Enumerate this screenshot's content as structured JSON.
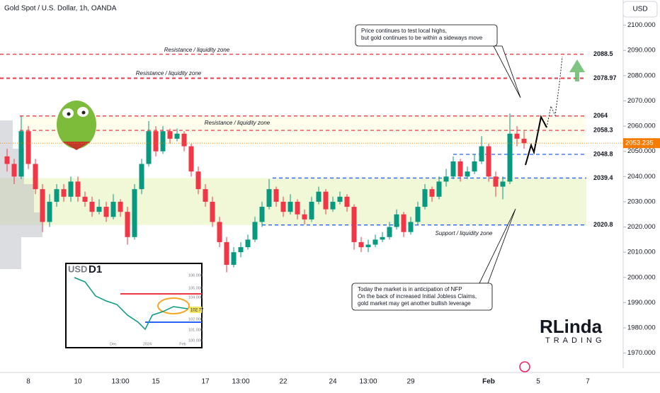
{
  "chart_data": {
    "type": "candlestick",
    "title": "Gold Spot / U.S. Dollar, 1h, OANDA",
    "currency": "USD",
    "up_color": "#089981",
    "down_color": "#f23645",
    "categories": [
      null,
      null,
      null,
      "8",
      null,
      null,
      null,
      null,
      null,
      null,
      "10",
      null,
      null,
      null,
      null,
      null,
      "13:00",
      null,
      null,
      null,
      null,
      "15",
      null,
      null,
      null,
      null,
      null,
      null,
      "17",
      null,
      null,
      null,
      null,
      "13:00",
      null,
      null,
      null,
      null,
      null,
      "22",
      null,
      null,
      null,
      null,
      null,
      null,
      "24",
      null,
      null,
      null,
      null,
      "13:00",
      null,
      null,
      null,
      null,
      null,
      "29",
      null,
      null,
      null,
      null,
      null,
      null,
      null,
      null,
      null,
      null,
      "Feb",
      null,
      null,
      null,
      null,
      null,
      null,
      "5",
      null,
      null,
      null,
      null,
      null,
      null,
      "7"
    ],
    "open": [
      2048,
      2045,
      2040,
      2058,
      2045,
      2035,
      2022,
      2030,
      2035,
      2032,
      2038,
      2032,
      2030,
      2026,
      2028,
      2024,
      2030,
      2026,
      2016,
      2035,
      2045,
      2058,
      2050,
      2058,
      2055,
      2057,
      2052,
      2042,
      2035,
      2030,
      2022,
      2014,
      2005,
      2010,
      2012,
      2015,
      2022,
      2028,
      2035,
      2030,
      2026,
      2030,
      2025,
      2023,
      2030,
      2034,
      2027,
      2030,
      2032,
      2028,
      2014,
      2012,
      2013,
      2015,
      2016,
      2020,
      2025,
      2018,
      2022,
      2028,
      2035,
      2032,
      2038,
      2040,
      2046,
      2040,
      2042,
      2046,
      2052,
      2040,
      2036,
      2038,
      2057,
      2055,
      null,
      null,
      null,
      null,
      null,
      null,
      null,
      null,
      null
    ],
    "high": [
      2051,
      2047,
      2064,
      2060,
      2047,
      2037,
      2033,
      2037,
      2037,
      2040,
      2040,
      2034,
      2032,
      2031,
      2030,
      2033,
      2031,
      2028,
      2037,
      2047,
      2062,
      2060,
      2060,
      2059,
      2059,
      2058,
      2053,
      2044,
      2037,
      2032,
      2024,
      2016,
      2012,
      2014,
      2017,
      2024,
      2030,
      2039,
      2036,
      2032,
      2033,
      2031,
      2027,
      2032,
      2036,
      2035,
      2032,
      2034,
      2033,
      2029,
      2016,
      2015,
      2017,
      2018,
      2022,
      2027,
      2026,
      2024,
      2030,
      2037,
      2036,
      2040,
      2043,
      2048,
      2047,
      2044,
      2049,
      2056,
      2053,
      2042,
      2040,
      2065,
      2060,
      2058,
      null,
      null,
      null,
      null,
      null,
      null,
      null,
      null,
      null
    ],
    "low": [
      2042,
      2037,
      2039,
      2043,
      2033,
      2018,
      2020,
      2028,
      2030,
      2030,
      2030,
      2028,
      2024,
      2025,
      2022,
      2023,
      2024,
      2013,
      2015,
      2033,
      2044,
      2048,
      2049,
      2053,
      2054,
      2050,
      2040,
      2033,
      2028,
      2020,
      2012,
      2002,
      2004,
      2008,
      2011,
      2014,
      2020,
      2027,
      2028,
      2024,
      2025,
      2023,
      2021,
      2022,
      2029,
      2025,
      2026,
      2029,
      2026,
      2011,
      2010,
      2010,
      2012,
      2014,
      2015,
      2019,
      2016,
      2017,
      2021,
      2027,
      2030,
      2031,
      2036,
      2039,
      2038,
      2039,
      2041,
      2045,
      2038,
      2032,
      2031,
      2037,
      2052,
      2051,
      null,
      null,
      null,
      null,
      null,
      null,
      null,
      null,
      null
    ],
    "close": [
      2045,
      2040,
      2058,
      2045,
      2035,
      2022,
      2030,
      2035,
      2032,
      2038,
      2032,
      2030,
      2026,
      2028,
      2024,
      2030,
      2026,
      2016,
      2035,
      2045,
      2058,
      2050,
      2058,
      2055,
      2057,
      2052,
      2042,
      2035,
      2030,
      2022,
      2014,
      2005,
      2010,
      2012,
      2015,
      2022,
      2028,
      2035,
      2030,
      2026,
      2030,
      2025,
      2023,
      2030,
      2034,
      2027,
      2030,
      2032,
      2028,
      2014,
      2012,
      2013,
      2015,
      2016,
      2020,
      2025,
      2018,
      2022,
      2028,
      2035,
      2032,
      2038,
      2040,
      2046,
      2040,
      2042,
      2046,
      2052,
      2040,
      2036,
      2038,
      2057,
      2055,
      2053.235,
      null,
      null,
      null,
      null,
      null,
      null,
      null,
      null,
      null
    ],
    "ylim": [
      1964,
      2110
    ],
    "yticks": [
      {
        "value": 2100,
        "label": "2100.000"
      },
      {
        "value": 2090,
        "label": "2090.000"
      },
      {
        "value": 2080,
        "label": "2080.000"
      },
      {
        "value": 2070,
        "label": "2070.000"
      },
      {
        "value": 2060,
        "label": "2060.000"
      },
      {
        "value": 2050,
        "label": "2050.000"
      },
      {
        "value": 2040,
        "label": "2040.000"
      },
      {
        "value": 2030,
        "label": "2030.000"
      },
      {
        "value": 2020,
        "label": "2020.000"
      },
      {
        "value": 2010,
        "label": "2010.000"
      },
      {
        "value": 2000,
        "label": "2000.000"
      },
      {
        "value": 1990,
        "label": "1990.000"
      },
      {
        "value": 1980,
        "label": "1980.000"
      },
      {
        "value": 1970,
        "label": "1970.000"
      }
    ],
    "levels": [
      {
        "value": 2088.5,
        "color": "#f23645"
      },
      {
        "value": 2078.97,
        "color": "#f23645"
      },
      {
        "value": 2064,
        "color": "#f23645"
      },
      {
        "value": 2058.3,
        "color": "#f23645"
      },
      {
        "value": 2048.8,
        "color": "#2962ff"
      },
      {
        "value": 2039.4,
        "color": "#2962ff"
      },
      {
        "value": 2020.8,
        "color": "#2962ff"
      }
    ],
    "annotations": [
      "Resistance / liquidity zone",
      "Resistance / liquidity zone",
      "Resistance / liquidity zone",
      "Support / liquidity zone"
    ],
    "callouts": [
      [
        "Price continues to test local highs,",
        "but gold continues to be within a sideways move"
      ],
      [
        "Today the market is in anticipation of NFP",
        "On the back of increased Initial Jobless Claims,",
        "gold market may get another bullish leverage"
      ]
    ],
    "inset": {
      "currency": "USD",
      "timeframe": "D1",
      "yticks": [
        "106.000",
        "105.000",
        "104.000",
        "102.000",
        "101.000",
        "100.000"
      ],
      "price": "102.77",
      "xlabels": [
        "Dec",
        "2024",
        "Feb"
      ]
    },
    "logo": {
      "name": "RLinda",
      "sub": "TRADING"
    }
  }
}
